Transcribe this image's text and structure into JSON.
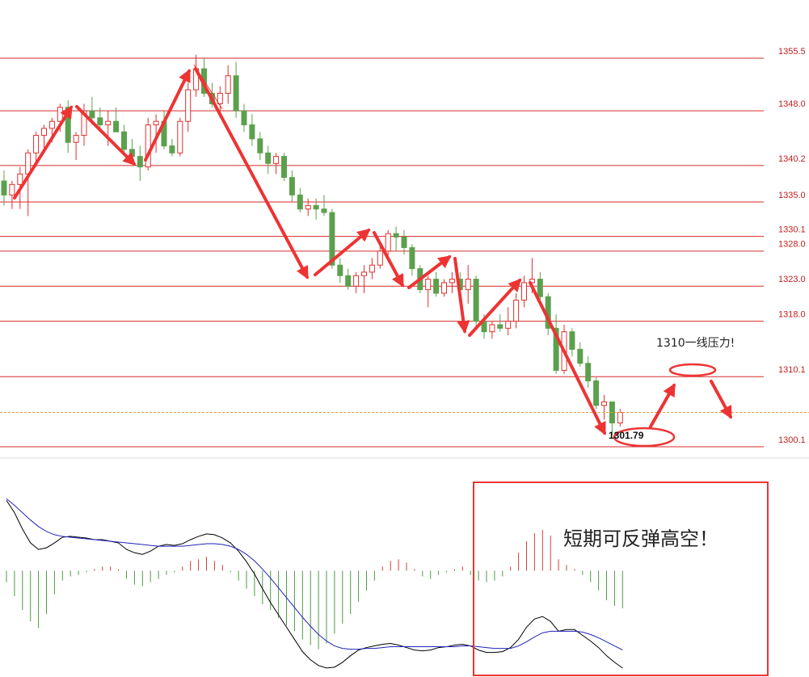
{
  "chart_data": [
    {
      "type": "candlestick",
      "annotation": "1310一线压力!",
      "ylim": [
        1299.3,
        1363.8
      ],
      "yticks": [
        {
          "value": 1355.5,
          "label": "1355.5"
        },
        {
          "value": 1348.0,
          "label": "1348.0"
        },
        {
          "value": 1340.2,
          "label": "1340.2"
        },
        {
          "value": 1335.0,
          "label": "1335.0"
        },
        {
          "value": 1330.1,
          "label": "1330.1"
        },
        {
          "value": 1328.0,
          "label": "1328.0"
        },
        {
          "value": 1323.0,
          "label": "1323.0"
        },
        {
          "value": 1318.0,
          "label": "1318.0"
        },
        {
          "value": 1310.1,
          "label": "1310.1"
        },
        {
          "value": 1300.1,
          "label": "1300.1"
        }
      ],
      "grid_color": "#d42a2a",
      "up_color": "#e03030",
      "down_color": "#5ca04e",
      "last_line_color": "#e8a040",
      "candles": [
        [
          1338,
          1339.5,
          1334.5,
          1336
        ],
        [
          1336,
          1338,
          1334,
          1337.5
        ],
        [
          1337.5,
          1340,
          1334,
          1339
        ],
        [
          1339,
          1342.5,
          1333,
          1342
        ],
        [
          1342,
          1345,
          1340,
          1344.5
        ],
        [
          1344.5,
          1346,
          1342,
          1345.5
        ],
        [
          1345.5,
          1347,
          1343.5,
          1346.5
        ],
        [
          1346.5,
          1349,
          1345,
          1348.5
        ],
        [
          1348.5,
          1349.5,
          1342,
          1343.5
        ],
        [
          1343.5,
          1345,
          1341,
          1344.5
        ],
        [
          1344.5,
          1349,
          1343,
          1348
        ],
        [
          1348,
          1350,
          1346,
          1347
        ],
        [
          1347,
          1348.5,
          1345,
          1346
        ],
        [
          1346,
          1348,
          1343,
          1346.5
        ],
        [
          1346.5,
          1348.5,
          1345,
          1345
        ],
        [
          1345,
          1346,
          1342,
          1342.5
        ],
        [
          1342.5,
          1344,
          1340.5,
          1341.5
        ],
        [
          1341.5,
          1343,
          1338,
          1340
        ],
        [
          1340,
          1347,
          1339.5,
          1346
        ],
        [
          1346,
          1347.5,
          1342,
          1346.5
        ],
        [
          1346.5,
          1348,
          1342.5,
          1343
        ],
        [
          1343,
          1344,
          1341.5,
          1342
        ],
        [
          1342,
          1347,
          1341.5,
          1346.5
        ],
        [
          1346.5,
          1352,
          1345,
          1351
        ],
        [
          1351,
          1356,
          1350,
          1354
        ],
        [
          1354,
          1355.5,
          1350,
          1350.5
        ],
        [
          1350.5,
          1352,
          1348.5,
          1349
        ],
        [
          1349,
          1351.5,
          1347,
          1350.5
        ],
        [
          1350.5,
          1354.5,
          1349,
          1353
        ],
        [
          1353,
          1355,
          1347,
          1348
        ],
        [
          1348,
          1349,
          1345,
          1346
        ],
        [
          1346,
          1347.5,
          1343,
          1344
        ],
        [
          1344,
          1345,
          1341,
          1342
        ],
        [
          1342,
          1343,
          1339,
          1340.5
        ],
        [
          1340.5,
          1342,
          1339,
          1341.5
        ],
        [
          1341.5,
          1342,
          1338,
          1338.5
        ],
        [
          1338.5,
          1339.5,
          1335,
          1336
        ],
        [
          1336,
          1337,
          1333.5,
          1334
        ],
        [
          1334,
          1335.5,
          1333,
          1334.5
        ],
        [
          1334.5,
          1335.5,
          1332.5,
          1334
        ],
        [
          1334,
          1336,
          1333,
          1333.5
        ],
        [
          1333.5,
          1334,
          1325.5,
          1326
        ],
        [
          1326,
          1327,
          1323.5,
          1324.5
        ],
        [
          1324.5,
          1325.5,
          1322.5,
          1323
        ],
        [
          1323,
          1325,
          1322,
          1324.5
        ],
        [
          1324.5,
          1326,
          1322,
          1325
        ],
        [
          1325,
          1327,
          1324,
          1326
        ],
        [
          1326,
          1329,
          1325.5,
          1328
        ],
        [
          1328,
          1331,
          1327,
          1330.5
        ],
        [
          1330.5,
          1331.5,
          1328,
          1330
        ],
        [
          1330,
          1331,
          1327.5,
          1328.5
        ],
        [
          1328.5,
          1329,
          1324.5,
          1325.5
        ],
        [
          1325.5,
          1326,
          1322,
          1322.5
        ],
        [
          1322.5,
          1324.5,
          1320,
          1324
        ],
        [
          1324,
          1325,
          1321.5,
          1322
        ],
        [
          1322,
          1324,
          1321.5,
          1323.5
        ],
        [
          1323.5,
          1325,
          1322,
          1324
        ],
        [
          1324,
          1325,
          1321,
          1322.5
        ],
        [
          1322.5,
          1326,
          1320.5,
          1324
        ],
        [
          1324,
          1324.5,
          1317,
          1318
        ],
        [
          1318,
          1319,
          1315.5,
          1316.5
        ],
        [
          1316.5,
          1318,
          1315.5,
          1317.5
        ],
        [
          1317.5,
          1319,
          1316.5,
          1317
        ],
        [
          1317,
          1320,
          1316,
          1318
        ],
        [
          1318,
          1322,
          1317,
          1321
        ],
        [
          1321,
          1324.5,
          1320,
          1323.5
        ],
        [
          1323.5,
          1327,
          1322,
          1324
        ],
        [
          1324,
          1325,
          1321,
          1321.5
        ],
        [
          1321.5,
          1322,
          1316,
          1317
        ],
        [
          1317,
          1319,
          1310.5,
          1311
        ],
        [
          1311,
          1317.5,
          1310.5,
          1316.5
        ],
        [
          1316.5,
          1317,
          1313,
          1314
        ],
        [
          1314,
          1315,
          1311.5,
          1312
        ],
        [
          1312,
          1313,
          1308.5,
          1309.5
        ],
        [
          1309.5,
          1310,
          1305.5,
          1306
        ],
        [
          1306,
          1307.5,
          1304,
          1306.5
        ],
        [
          1306.5,
          1306.5,
          1301.79,
          1303.5
        ],
        [
          1303.5,
          1305.5,
          1303,
          1305
        ]
      ]
    },
    {
      "type": "macd",
      "annotation": "短期可反弹高空！",
      "ylim": [
        -130,
        120
      ],
      "up_color": "#d04040",
      "down_color": "#4e9a44",
      "histogram": [
        -14,
        -31,
        -48,
        -62,
        -70,
        -53,
        -29,
        -12,
        -7,
        -5,
        -2,
        2,
        5,
        5,
        2,
        -10,
        -17,
        -19,
        -14,
        -10,
        -5,
        -2,
        5,
        12,
        14,
        17,
        12,
        7,
        -2,
        -12,
        -22,
        -31,
        -41,
        -48,
        -58,
        -67,
        -74,
        -84,
        -91,
        -96,
        -89,
        -77,
        -65,
        -53,
        -38,
        -24,
        -12,
        5,
        12,
        14,
        10,
        2,
        -7,
        -10,
        -5,
        -2,
        2,
        5,
        -5,
        -12,
        -14,
        -12,
        -7,
        5,
        22,
        36,
        46,
        50,
        43,
        14,
        7,
        2,
        -5,
        -14,
        -24,
        -36,
        -43,
        -46
      ],
      "lines": [
        {
          "color": "#000000",
          "values": [
            86,
            71,
            51,
            34,
            26,
            28,
            34,
            41,
            42,
            41,
            40,
            38,
            38,
            36,
            34,
            26,
            22,
            20,
            24,
            30,
            32,
            31,
            33,
            38,
            42,
            45,
            44,
            40,
            34,
            24,
            11,
            -4,
            -22,
            -39,
            -54,
            -69,
            -84,
            -99,
            -109,
            -116,
            -119,
            -118,
            -112,
            -104,
            -97,
            -94,
            -92,
            -90,
            -89,
            -91,
            -94,
            -97,
            -98,
            -97,
            -94,
            -93,
            -91,
            -90,
            -92,
            -97,
            -100,
            -100,
            -99,
            -94,
            -84,
            -69,
            -59,
            -56,
            -62,
            -74,
            -72,
            -72,
            -79,
            -86,
            -94,
            -104,
            -112,
            -119
          ]
        },
        {
          "color": "#2222bb",
          "values": [
            88,
            80,
            71,
            62,
            54,
            48,
            44,
            42,
            41,
            40,
            39,
            38,
            37,
            36,
            35,
            34,
            33,
            32,
            31,
            30,
            30,
            30,
            30,
            31,
            32,
            33,
            33,
            32,
            30,
            26,
            20,
            12,
            2,
            -9,
            -21,
            -33,
            -45,
            -57,
            -68,
            -78,
            -86,
            -92,
            -95,
            -96,
            -96,
            -95,
            -95,
            -94,
            -93,
            -93,
            -93,
            -93,
            -93,
            -93,
            -93,
            -93,
            -93,
            -92,
            -92,
            -93,
            -94,
            -95,
            -95,
            -95,
            -92,
            -87,
            -81,
            -76,
            -74,
            -74,
            -74,
            -74,
            -75,
            -78,
            -82,
            -87,
            -92,
            -97
          ]
        }
      ]
    }
  ]
}
